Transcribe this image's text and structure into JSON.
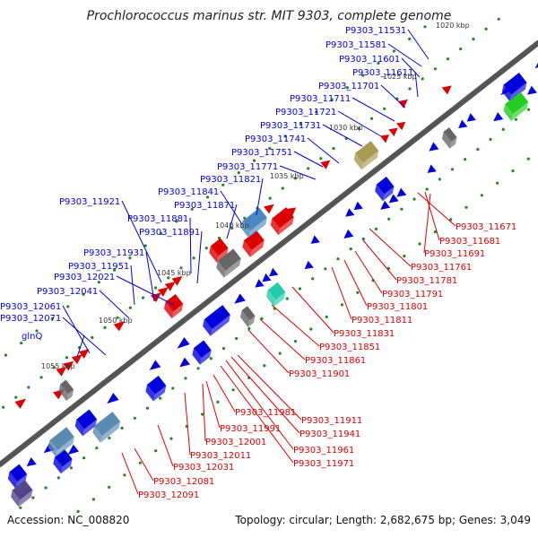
{
  "title": "Prochlorococcus marinus str. MIT 9303, complete genome",
  "accession": "Accession: NC_008820",
  "topology": "Topology: circular; Length: 2,682,675 bp; Genes: 3,049",
  "colors": {
    "backbone": "#555555",
    "plus_strand": "#0000dd",
    "minus_strand": "#dd0000",
    "tick_dots": "#228822",
    "rna_gray": "#666666",
    "green_gene": "#22cc22",
    "teal_gene": "#22ccaa",
    "olive_gene": "#a89a50",
    "steel_blue_gene": "#4a88c0",
    "slate_gene": "#5a8ab0",
    "purple_gene": "#55448a"
  },
  "scale_labels": [
    "1020 kbp",
    "1025 kbp",
    "1030 kbp",
    "1035 kbp",
    "1040 kbp",
    "1045 kbp",
    "1050 kbp",
    "1055 kbp"
  ],
  "blue_labels": [
    "P9303_11531",
    "P9303_11581",
    "P9303_11601",
    "P9303_11611",
    "P9303_11701",
    "P9303_11711",
    "P9303_11721",
    "P9303_11731",
    "P9303_11741",
    "P9303_11751",
    "P9303_11771",
    "P9303_11821",
    "P9303_11841",
    "P9303_11921",
    "P9303_11871",
    "P9303_11881",
    "P9303_11891",
    "P9303_11931",
    "P9303_11951",
    "P9303_12021",
    "P9303_12041",
    "P9303_12061",
    "P9303_12071",
    "glnQ"
  ],
  "red_labels": [
    "P9303_11671",
    "P9303_11681",
    "P9303_11691",
    "P9303_11761",
    "P9303_11781",
    "P9303_11791",
    "P9303_11801",
    "P9303_11811",
    "P9303_11831",
    "P9303_11851",
    "P9303_11861",
    "P9303_11901",
    "P9303_11911",
    "P9303_11941",
    "P9303_11981",
    "P9303_11991",
    "P9303_12001",
    "P9303_12011",
    "P9303_11961",
    "P9303_11971",
    "P9303_12031",
    "P9303_12081",
    "P9303_12091"
  ]
}
